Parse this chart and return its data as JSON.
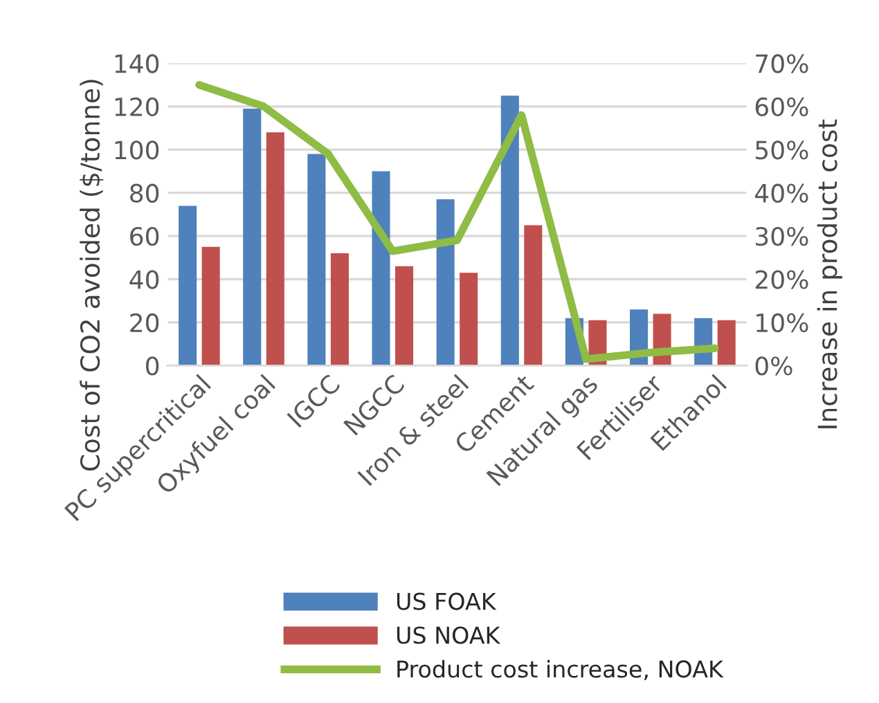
{
  "chart_data": {
    "type": "bar",
    "ylabel": "Cost of CO2 avoided ($/tonne)",
    "y2label": "Increase in product cost",
    "categories": [
      "PC supercritical",
      "Oxyfuel coal",
      "IGCC",
      "NGCC",
      "Iron & steel",
      "Cement",
      "Natural gas",
      "Fertiliser",
      "Ethanol"
    ],
    "series": [
      {
        "name": "US FOAK",
        "color": "#4f81bd",
        "values": [
          74,
          119,
          98,
          90,
          77,
          125,
          22,
          26,
          22
        ]
      },
      {
        "name": "US NOAK",
        "color": "#c0504d",
        "values": [
          55,
          108,
          52,
          46,
          43,
          65,
          21,
          24,
          21
        ]
      },
      {
        "name": "Product cost increase, NOAK",
        "type": "line",
        "axis": "y2",
        "color": "#8fbc45",
        "values": [
          65,
          60,
          49,
          26.5,
          29,
          58,
          1.5,
          3,
          4
        ]
      }
    ],
    "ylim": [
      0,
      140
    ],
    "yticks": [
      0,
      20,
      40,
      60,
      80,
      100,
      120,
      140
    ],
    "y2lim": [
      0,
      70
    ],
    "y2ticks": [
      {
        "value": 0,
        "label": "0%"
      },
      {
        "value": 10,
        "label": "10%"
      },
      {
        "value": 20,
        "label": "20%"
      },
      {
        "value": 30,
        "label": "30%"
      },
      {
        "value": 40,
        "label": "40%"
      },
      {
        "value": 50,
        "label": "50%"
      },
      {
        "value": 60,
        "label": "60%"
      },
      {
        "value": 70,
        "label": "70%"
      }
    ],
    "grid": "y",
    "legend": "bottom",
    "marker": "none"
  }
}
